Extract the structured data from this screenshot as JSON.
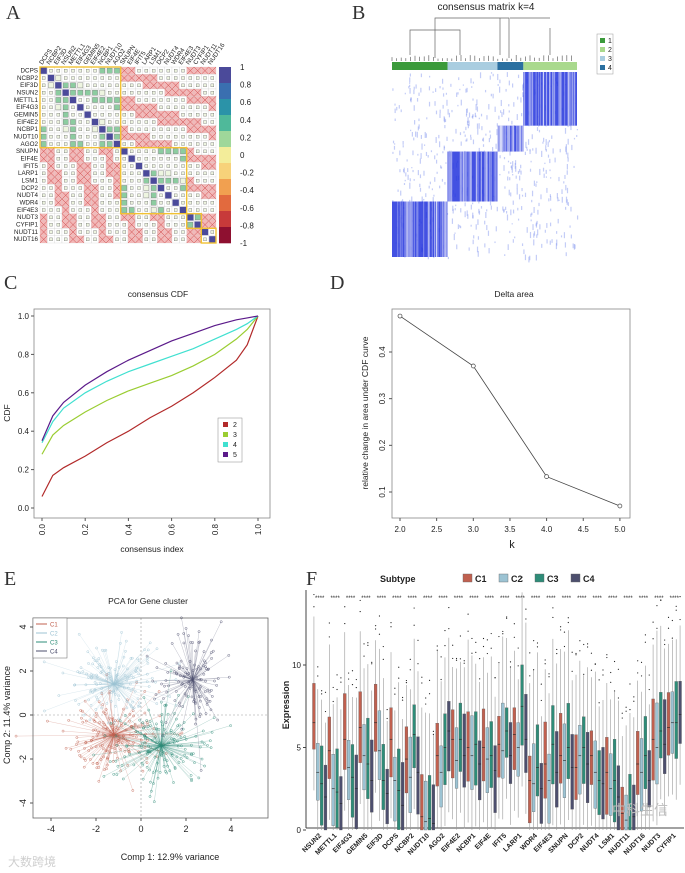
{
  "panels": {
    "a": "A",
    "b": "B",
    "c": "C",
    "d": "D",
    "e": "E",
    "f": "F"
  },
  "colors": {
    "c1": "#c0604f",
    "c2": "#9cc3d3",
    "c3": "#2e8c78",
    "c4": "#4d4f6e",
    "heat_pos": "#4b4a9a",
    "heat_neg": "#f2b8b8",
    "cluster_box": "#f1c232"
  },
  "chart_data": [
    {
      "id": "A",
      "type": "heatmap",
      "title": "",
      "genes": [
        "DCPS",
        "NCBP2",
        "EIF3D",
        "NSUN2",
        "METTL1",
        "EIF4G3",
        "GEMIN5",
        "EIF4E2",
        "NCBP1",
        "NUDT10",
        "AGO2",
        "SNUPN",
        "EIF4E",
        "IFIT5",
        "LARP1",
        "LSM1",
        "DCP2",
        "NUDT4",
        "WDR4",
        "EIF4E3",
        "NUDT3",
        "CYFIP1",
        "NUDT11",
        "NUDT16"
      ],
      "clusters": [
        [
          0,
          10
        ],
        [
          11,
          19
        ],
        [
          20,
          21
        ],
        [
          22,
          23
        ]
      ],
      "colorbar_ticks": [
        "1",
        "0.8",
        "0.6",
        "0.4",
        "0.2",
        "0",
        "-0.2",
        "-0.4",
        "-0.6",
        "-0.8",
        "-1"
      ],
      "colorbar_colors": [
        "#4b4a9a",
        "#3a6fb0",
        "#2b93a8",
        "#4fb99a",
        "#9fd79a",
        "#f3ed9a",
        "#f7d27a",
        "#f1a050",
        "#e26a3e",
        "#c73a3a",
        "#8e1030"
      ]
    },
    {
      "id": "B",
      "type": "heatmap",
      "title": "consensus matrix k=4",
      "legend": [
        "1",
        "2",
        "3",
        "4"
      ],
      "legend_colors": [
        "#3b9a3b",
        "#a9d98d",
        "#a9cde0",
        "#2a6fa0"
      ],
      "order": [
        "1",
        "3",
        "4",
        "2"
      ],
      "order_fractions": [
        0.3,
        0.27,
        0.14,
        0.29
      ]
    },
    {
      "id": "C",
      "type": "line",
      "title": "consensus CDF",
      "xlabel": "consensus index",
      "ylabel": "CDF",
      "xlim": [
        0,
        1
      ],
      "ylim": [
        0,
        1
      ],
      "xticks": [
        "0.0",
        "0.2",
        "0.4",
        "0.6",
        "0.8",
        "1.0"
      ],
      "yticks": [
        "0.0",
        "0.2",
        "0.4",
        "0.6",
        "0.8",
        "1.0"
      ],
      "legend_position": "right",
      "series": [
        {
          "name": "2",
          "color": "#b22a2a",
          "x": [
            0,
            0.05,
            0.1,
            0.2,
            0.3,
            0.4,
            0.5,
            0.6,
            0.7,
            0.8,
            0.9,
            0.95,
            1.0
          ],
          "y": [
            0.06,
            0.17,
            0.21,
            0.27,
            0.34,
            0.4,
            0.47,
            0.53,
            0.6,
            0.68,
            0.77,
            0.85,
            1.0
          ]
        },
        {
          "name": "3",
          "color": "#9acd32",
          "x": [
            0,
            0.05,
            0.1,
            0.2,
            0.3,
            0.4,
            0.5,
            0.6,
            0.7,
            0.8,
            0.9,
            0.95,
            1.0
          ],
          "y": [
            0.28,
            0.38,
            0.43,
            0.5,
            0.56,
            0.61,
            0.65,
            0.69,
            0.74,
            0.8,
            0.88,
            0.93,
            1.0
          ]
        },
        {
          "name": "4",
          "color": "#40e0d0",
          "x": [
            0,
            0.05,
            0.1,
            0.2,
            0.3,
            0.4,
            0.5,
            0.6,
            0.7,
            0.8,
            0.9,
            0.95,
            1.0
          ],
          "y": [
            0.34,
            0.45,
            0.52,
            0.6,
            0.66,
            0.71,
            0.75,
            0.79,
            0.83,
            0.88,
            0.93,
            0.96,
            1.0
          ]
        },
        {
          "name": "5",
          "color": "#5b1a8a",
          "x": [
            0,
            0.05,
            0.1,
            0.2,
            0.3,
            0.4,
            0.5,
            0.6,
            0.7,
            0.8,
            0.9,
            0.95,
            1.0
          ],
          "y": [
            0.35,
            0.48,
            0.55,
            0.64,
            0.71,
            0.77,
            0.82,
            0.87,
            0.91,
            0.95,
            0.98,
            0.99,
            1.0
          ]
        }
      ]
    },
    {
      "id": "D",
      "type": "line",
      "title": "Delta area",
      "xlabel": "k",
      "ylabel": "relative change in area under CDF curve",
      "xlim": [
        1.95,
        5.05
      ],
      "ylim": [
        0.05,
        0.49
      ],
      "xticks": [
        "2.0",
        "2.5",
        "3.0",
        "3.5",
        "4.0",
        "4.5",
        "5.0"
      ],
      "yticks": [
        "0.1",
        "0.2",
        "0.3",
        "0.4"
      ],
      "x": [
        2,
        3,
        4,
        5
      ],
      "y": [
        0.477,
        0.37,
        0.133,
        0.07
      ]
    },
    {
      "id": "E",
      "type": "scatter",
      "title": "PCA for Gene cluster",
      "xlabel": "Comp 1: 12.9% variance",
      "ylabel": "Comp 2: 11.4% variance",
      "xlim": [
        -4.9,
        5.6
      ],
      "ylim": [
        -5,
        4.5
      ],
      "xticks": [
        "-4",
        "-2",
        "0",
        "2",
        "4"
      ],
      "yticks": [
        "-4",
        "-2",
        "0",
        "2",
        "4"
      ],
      "legend_position": "top-left",
      "series": [
        {
          "name": "C1",
          "center": [
            -1.2,
            -0.9
          ],
          "spread": [
            1.1,
            0.9
          ],
          "n": 170
        },
        {
          "name": "C2",
          "center": [
            -1.2,
            1.4
          ],
          "spread": [
            1.1,
            0.9
          ],
          "n": 150
        },
        {
          "name": "C3",
          "center": [
            0.9,
            -1.4
          ],
          "spread": [
            1.2,
            1.0
          ],
          "n": 160
        },
        {
          "name": "C4",
          "center": [
            2.3,
            1.6
          ],
          "spread": [
            0.8,
            1.1
          ],
          "n": 120
        }
      ],
      "watermark": "大数跨境"
    },
    {
      "id": "F",
      "type": "box",
      "title": "",
      "legend_title": "Subtype",
      "ylabel": "Expression",
      "ylim": [
        -0.3,
        14.5
      ],
      "yticks": [
        "0",
        "5",
        "10"
      ],
      "legend": [
        "C1",
        "C2",
        "C3",
        "C4"
      ],
      "significance": "****",
      "categories": [
        "NSUN2",
        "METTL1",
        "EIF4G3",
        "GEMIN5",
        "EIF3D",
        "DCPS",
        "NCBP2",
        "NUDT10",
        "AGO2",
        "EIF4E2",
        "NCBP1",
        "EIF4E",
        "IFIT5",
        "LARP1",
        "WDR4",
        "EIF4E3",
        "SNUPN",
        "DCP2",
        "NUDT4",
        "LSM1",
        "NUDT11",
        "NUDT16",
        "NUDT3",
        "CYFIP1"
      ],
      "medians": [
        [
          6.5,
          3.5,
          2.8,
          2.0
        ],
        [
          4.8,
          2.5,
          2.3,
          1.6
        ],
        [
          5.5,
          3.8,
          3.2,
          2.5
        ],
        [
          6.2,
          4.5,
          4.0,
          3.0
        ],
        [
          6.5,
          4.8,
          3.0,
          2.2
        ],
        [
          5.5,
          3.0,
          2.4,
          1.5
        ],
        [
          4.3,
          3.2,
          5.8,
          3.5
        ],
        [
          0.8,
          0.5,
          0.7,
          0.4
        ],
        [
          4.5,
          3.5,
          5.0,
          6.0
        ],
        [
          5.5,
          4.2,
          5.5,
          4.5
        ],
        [
          5.0,
          4.5,
          5.2,
          4.0
        ],
        [
          5.0,
          4.3,
          4.5,
          3.6
        ],
        [
          5.2,
          4.8,
          6.0,
          4.5
        ],
        [
          5.8,
          5.0,
          7.5,
          5.5
        ],
        [
          3.0,
          2.8,
          3.8,
          2.5
        ],
        [
          4.0,
          3.0,
          5.2,
          3.5
        ],
        [
          4.5,
          4.2,
          5.0,
          3.8
        ],
        [
          3.8,
          4.5,
          5.0,
          4.0
        ],
        [
          4.5,
          3.5,
          3.0,
          2.8
        ],
        [
          3.5,
          2.5,
          3.0,
          2.0
        ],
        [
          1.0,
          0.6,
          1.2,
          0.8
        ],
        [
          4.0,
          3.5,
          4.5,
          3.0
        ],
        [
          5.5,
          5.0,
          6.0,
          5.2
        ],
        [
          6.2,
          6.5,
          6.5,
          7.0
        ]
      ],
      "watermark": "中科生信"
    }
  ]
}
